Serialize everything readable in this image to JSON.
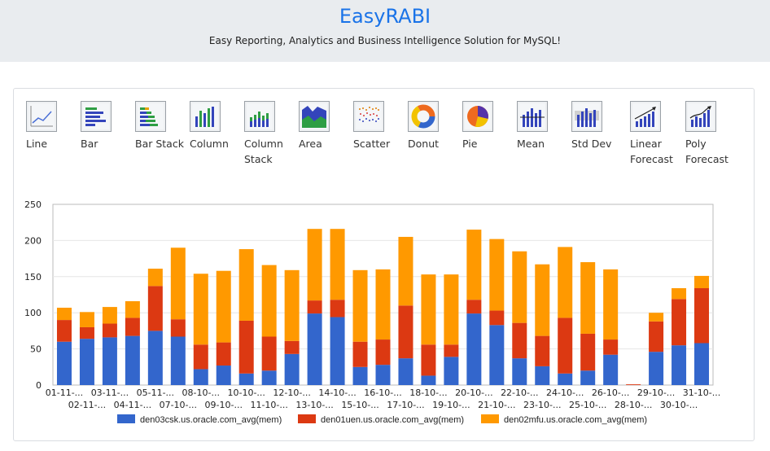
{
  "app": {
    "title": "EasyRABI",
    "subtitle": "Easy Reporting, Analytics and Business Intelligence Solution for MySQL!"
  },
  "toolbar": [
    {
      "label": "Line",
      "icon": "line-chart-icon"
    },
    {
      "label": "Bar",
      "icon": "bar-chart-icon"
    },
    {
      "label": "Bar Stack",
      "icon": "bar-stack-chart-icon"
    },
    {
      "label": "Column",
      "icon": "column-chart-icon"
    },
    {
      "label": "Column Stack",
      "icon": "column-stack-chart-icon"
    },
    {
      "label": "Area",
      "icon": "area-chart-icon"
    },
    {
      "label": "Scatter",
      "icon": "scatter-chart-icon"
    },
    {
      "label": "Donut",
      "icon": "donut-chart-icon"
    },
    {
      "label": "Pie",
      "icon": "pie-chart-icon"
    },
    {
      "label": "Mean",
      "icon": "mean-chart-icon"
    },
    {
      "label": "Std Dev",
      "icon": "std-dev-chart-icon"
    },
    {
      "label": "Linear Forecast",
      "icon": "linear-forecast-icon"
    },
    {
      "label": "Poly Forecast",
      "icon": "poly-forecast-icon"
    }
  ],
  "colors": {
    "series1": "#3366cc",
    "series2": "#dc3912",
    "series3": "#ff9900",
    "title": "#1a73e8"
  },
  "chart_data": {
    "type": "bar",
    "stacked": true,
    "ylim": [
      0,
      250
    ],
    "yticks": [
      0,
      50,
      100,
      150,
      200,
      250
    ],
    "grid": true,
    "legend": "bottom",
    "categories": [
      "01-11-...",
      "02-11-...",
      "03-11-...",
      "04-11-...",
      "05-11-...",
      "07-10-...",
      "08-10-...",
      "09-10-...",
      "10-10-...",
      "11-10-...",
      "12-10-...",
      "13-10-...",
      "14-10-...",
      "15-10-...",
      "16-10-...",
      "17-10-...",
      "18-10-...",
      "19-10-...",
      "20-10-...",
      "21-10-...",
      "22-10-...",
      "23-10-...",
      "24-10-...",
      "25-10-...",
      "26-10-...",
      "28-10-...",
      "29-10-...",
      "30-10-...",
      "31-10-..."
    ],
    "series": [
      {
        "name": "den03csk.us.oracle.com_avg(mem)",
        "values": [
          60,
          64,
          66,
          68,
          75,
          67,
          22,
          27,
          16,
          20,
          43,
          99,
          94,
          25,
          28,
          37,
          13,
          39,
          99,
          83,
          37,
          26,
          16,
          20,
          42,
          0,
          46,
          55,
          58
        ]
      },
      {
        "name": "den01uen.us.oracle.com_avg(mem)",
        "values": [
          30,
          16,
          19,
          25,
          62,
          24,
          34,
          32,
          73,
          47,
          18,
          18,
          24,
          35,
          35,
          73,
          43,
          17,
          19,
          20,
          49,
          42,
          77,
          51,
          21,
          1,
          42,
          64,
          76
        ]
      },
      {
        "name": "den02mfu.us.oracle.com_avg(mem)",
        "values": [
          17,
          21,
          23,
          23,
          24,
          99,
          98,
          99,
          99,
          99,
          98,
          99,
          98,
          99,
          97,
          95,
          97,
          97,
          97,
          99,
          99,
          99,
          98,
          99,
          97,
          0,
          12,
          15,
          17
        ]
      }
    ]
  }
}
